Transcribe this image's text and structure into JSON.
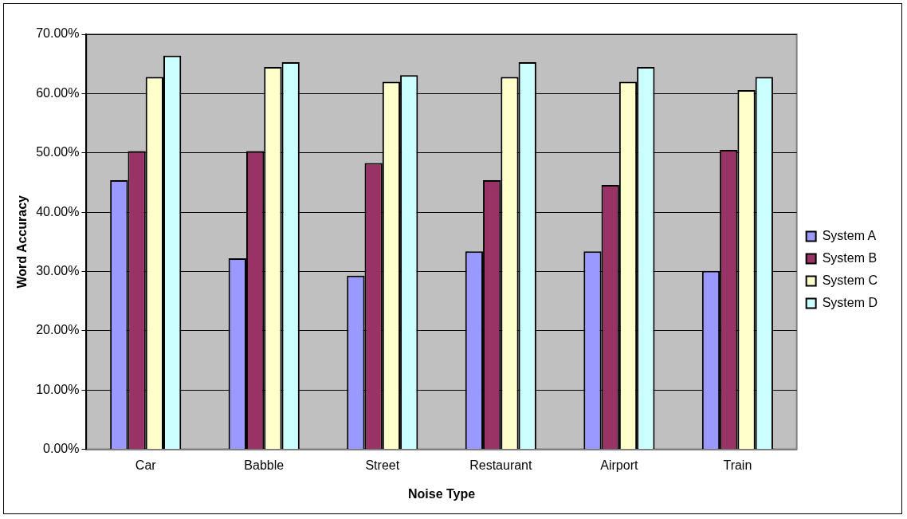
{
  "chart_data": {
    "type": "bar",
    "xlabel": "Noise Type",
    "ylabel": "Word Accuracy",
    "categories": [
      "Car",
      "Babble",
      "Street",
      "Restaurant",
      "Airport",
      "Train"
    ],
    "series": [
      {
        "name": "System A",
        "color": "#9999ff",
        "values": [
          45.4,
          32.2,
          29.3,
          33.4,
          33.4,
          30.1
        ]
      },
      {
        "name": "System B",
        "color": "#993366",
        "values": [
          50.3,
          50.3,
          48.3,
          45.4,
          44.6,
          50.5
        ]
      },
      {
        "name": "System C",
        "color": "#ffffcc",
        "values": [
          62.8,
          64.5,
          62.0,
          62.8,
          62.0,
          60.6
        ]
      },
      {
        "name": "System D",
        "color": "#ccffff",
        "values": [
          66.4,
          65.3,
          63.1,
          65.3,
          64.5,
          62.8
        ]
      }
    ],
    "ylim": [
      0,
      70
    ],
    "yticks": [
      {
        "value": 0,
        "label": "0.00%"
      },
      {
        "value": 10,
        "label": "10.00%"
      },
      {
        "value": 20,
        "label": "20.00%"
      },
      {
        "value": 30,
        "label": "30.00%"
      },
      {
        "value": 40,
        "label": "40.00%"
      },
      {
        "value": 50,
        "label": "50.00%"
      },
      {
        "value": 60,
        "label": "60.00%"
      },
      {
        "value": 70,
        "label": "70.00%"
      }
    ],
    "grid": "y",
    "legend": "right"
  }
}
